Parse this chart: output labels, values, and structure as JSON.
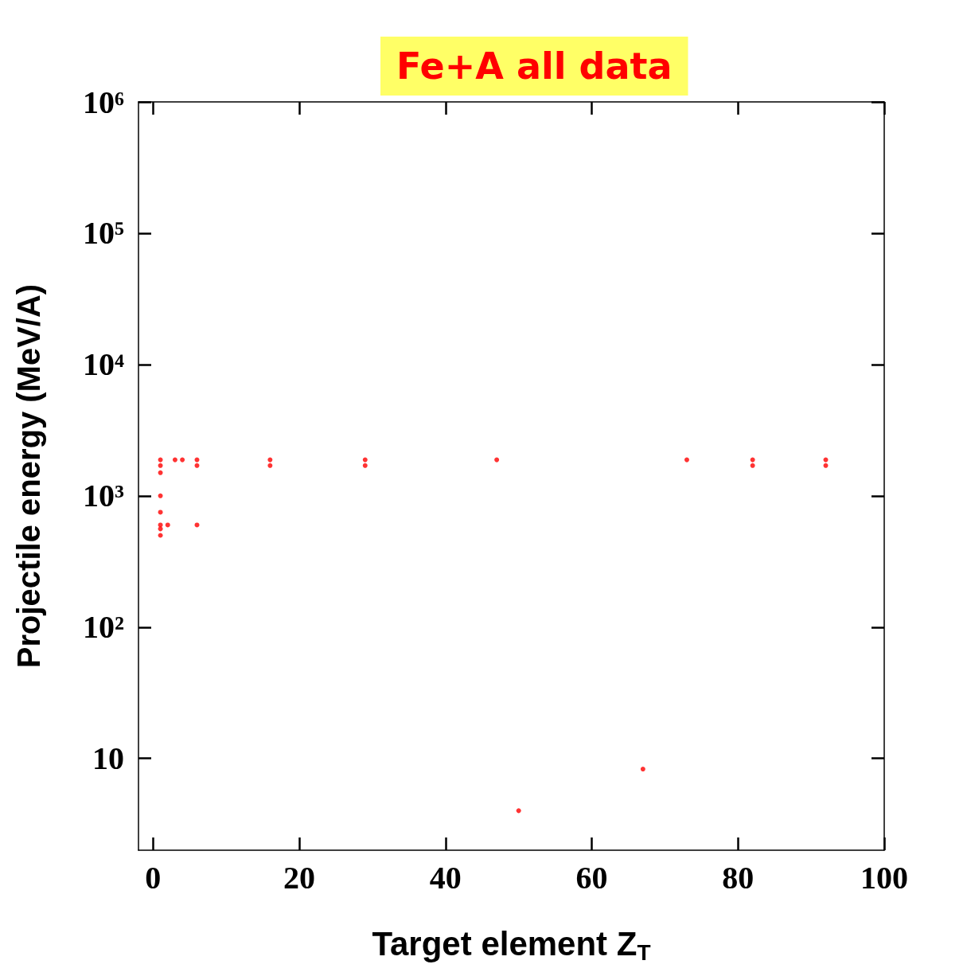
{
  "chart_data": {
    "type": "scatter",
    "title": "Fe+A all data",
    "xlabel": "Target element Z$_{T}$",
    "ylabel": "Projectile energy (MeV/A)",
    "log": "y",
    "grid": false,
    "marker": "circle",
    "xlim": [
      -2,
      100
    ],
    "xticks": [
      0,
      20,
      40,
      60,
      80,
      100
    ],
    "ylim": [
      2,
      1000000
    ],
    "yticks": [
      10,
      {
        "value": 100,
        "label": "10²"
      },
      {
        "value": 1000,
        "label": "10³"
      },
      {
        "value": 10000,
        "label": "10⁴"
      },
      {
        "value": 100000,
        "label": "10⁵"
      },
      {
        "value": 1000000,
        "label": "10⁶"
      }
    ],
    "series": [
      {
        "color": "#ff0000",
        "x": [
          1,
          1,
          1,
          1,
          1,
          1,
          1,
          1,
          2,
          3,
          4,
          6,
          6,
          6,
          16,
          16,
          29,
          29,
          47,
          50,
          67,
          73,
          82,
          82,
          92,
          92
        ],
        "values": [
          1880,
          1700,
          1500,
          1000,
          750,
          600,
          560,
          500,
          600,
          1880,
          1880,
          1880,
          1700,
          600,
          1880,
          1700,
          1880,
          1700,
          1880,
          4,
          8.3,
          1880,
          1880,
          1700,
          1880,
          1700
        ]
      }
    ]
  }
}
